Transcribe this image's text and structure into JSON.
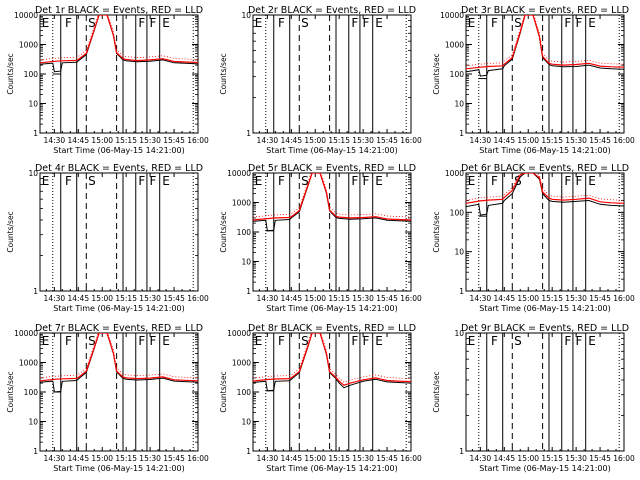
{
  "chart_data": {
    "type": "line",
    "yscale": "log",
    "grid": false,
    "panels": [
      {
        "title": "Det 1r BLACK = Events, RED = LLD",
        "ylabel": "Counts/sec",
        "xlabel": "Start Time (06-May-15 14:21:00)",
        "xlim": [
          "14:21",
          "16:00"
        ],
        "ylim": [
          1,
          10000
        ],
        "x_ticks": [
          "14:30",
          "14:45",
          "15:00",
          "15:15",
          "15:30",
          "15:45",
          "16:00"
        ],
        "y_ticks": [
          "1",
          "10",
          "100",
          "1000",
          "10000"
        ],
        "has_data": true,
        "dip_level": 100,
        "region_labels": [
          "E",
          "F",
          "S",
          "F",
          "F",
          "E"
        ],
        "series": [
          {
            "color": "#000000",
            "x": [
              "14:21",
              "14:29",
              "14:30",
              "14:34",
              "14:35",
              "14:44",
              "14:45",
              "14:50",
              "14:55",
              "14:58",
              "15:03",
              "15:07",
              "15:09",
              "15:13",
              "15:15",
              "15:22",
              "15:30",
              "15:38",
              "15:45",
              "15:52",
              "16:00"
            ],
            "y": [
              215,
              235,
              120,
              125,
              240,
              250,
              280,
              450,
              3000,
              10000,
              10000,
              2000,
              500,
              300,
              280,
              260,
              270,
              300,
              240,
              230,
              220
            ]
          },
          {
            "color": "#ff0000",
            "x": [
              "14:21",
              "14:30",
              "14:35",
              "14:44",
              "14:45",
              "14:50",
              "14:55",
              "14:58",
              "15:03",
              "15:07",
              "15:09",
              "15:13",
              "15:15",
              "15:22",
              "15:30",
              "15:38",
              "15:45",
              "15:52",
              "16:00"
            ],
            "y": [
              240,
              270,
              280,
              290,
              310,
              500,
              3200,
              10000,
              10000,
              2100,
              530,
              330,
              310,
              285,
              300,
              330,
              265,
              255,
              245
            ]
          }
        ]
      },
      {
        "title": "Det 2r BLACK = Events, RED = LLD",
        "ylabel": "Counts/sec",
        "xlabel": "Start Time (06-May-15 14:21:00)",
        "xlim": [
          "14:21",
          "16:00"
        ],
        "ylim": [
          1,
          10
        ],
        "x_ticks": [
          "14:30",
          "14:45",
          "15:00",
          "15:15",
          "15:30",
          "15:45",
          "16:00"
        ],
        "y_ticks": [
          "1",
          "10"
        ],
        "has_data": false,
        "region_labels": [
          "E",
          "F",
          "S",
          "F",
          "F",
          "E"
        ],
        "series": []
      },
      {
        "title": "Det 3r BLACK = Events, RED = LLD",
        "ylabel": "Counts/sec",
        "xlabel": "Start Time (06-May-15 14:21:00)",
        "xlim": [
          "14:21",
          "16:00"
        ],
        "ylim": [
          1,
          10000
        ],
        "x_ticks": [
          "14:30",
          "14:45",
          "15:00",
          "15:15",
          "15:30",
          "15:45",
          "16:00"
        ],
        "y_ticks": [
          "1",
          "10",
          "100",
          "1000",
          "10000"
        ],
        "has_data": true,
        "dip_level": 70,
        "region_labels": [
          "E",
          "F",
          "S",
          "F",
          "F",
          "E"
        ],
        "series": [
          {
            "color": "#000000",
            "x": [
              "14:21",
              "14:29",
              "14:30",
              "14:34",
              "14:35",
              "14:44",
              "14:45",
              "14:50",
              "14:55",
              "14:58",
              "15:03",
              "15:07",
              "15:09",
              "15:13",
              "15:15",
              "15:22",
              "15:30",
              "15:38",
              "15:45",
              "15:52",
              "16:00"
            ],
            "y": [
              120,
              140,
              85,
              90,
              130,
              150,
              190,
              320,
              2500,
              10000,
              10000,
              1800,
              360,
              210,
              190,
              175,
              180,
              200,
              160,
              150,
              145
            ]
          },
          {
            "color": "#ff0000",
            "x": [
              "14:21",
              "14:30",
              "14:35",
              "14:44",
              "14:45",
              "14:50",
              "14:55",
              "14:58",
              "15:03",
              "15:07",
              "15:09",
              "15:13",
              "15:15",
              "15:22",
              "15:30",
              "15:38",
              "15:45",
              "15:52",
              "16:00"
            ],
            "y": [
              150,
              170,
              180,
              190,
              215,
              360,
              2700,
              10000,
              10000,
              1900,
              390,
              230,
              215,
              200,
              210,
              230,
              185,
              175,
              170
            ]
          }
        ]
      },
      {
        "title": "Det 4r BLACK = Events, RED = LLD",
        "ylabel": "Counts/sec",
        "xlabel": "Start Time (06-May-15 14:21:00)",
        "xlim": [
          "14:21",
          "16:00"
        ],
        "ylim": [
          1,
          10
        ],
        "x_ticks": [
          "14:30",
          "14:45",
          "15:00",
          "15:15",
          "15:30",
          "15:45",
          "16:00"
        ],
        "y_ticks": [
          "1",
          "10"
        ],
        "has_data": false,
        "region_labels": [
          "E",
          "F",
          "S",
          "F",
          "F",
          "E"
        ],
        "series": []
      },
      {
        "title": "Det 5r BLACK = Events, RED = LLD",
        "ylabel": "Counts/sec",
        "xlabel": "Start Time (06-May-15 14:21:00)",
        "xlim": [
          "14:21",
          "16:00"
        ],
        "ylim": [
          1,
          10000
        ],
        "x_ticks": [
          "14:30",
          "14:45",
          "15:00",
          "15:15",
          "15:30",
          "15:45",
          "16:00"
        ],
        "y_ticks": [
          "1",
          "10",
          "100",
          "1000",
          "10000"
        ],
        "has_data": true,
        "dip_level": 110,
        "region_labels": [
          "E",
          "F",
          "S",
          "F",
          "F",
          "E"
        ],
        "series": [
          {
            "color": "#000000",
            "x": [
              "14:21",
              "14:29",
              "14:30",
              "14:34",
              "14:35",
              "14:44",
              "14:45",
              "14:50",
              "14:55",
              "14:58",
              "15:03",
              "15:07",
              "15:09",
              "15:13",
              "15:15",
              "15:22",
              "15:30",
              "15:38",
              "15:45",
              "15:52",
              "16:00"
            ],
            "y": [
              230,
              250,
              110,
              115,
              250,
              265,
              300,
              480,
              3100,
              10000,
              10000,
              2100,
              520,
              310,
              290,
              270,
              280,
              300,
              250,
              240,
              230
            ]
          },
          {
            "color": "#ff0000",
            "x": [
              "14:21",
              "14:30",
              "14:35",
              "14:44",
              "14:45",
              "14:50",
              "14:55",
              "14:58",
              "15:03",
              "15:07",
              "15:09",
              "15:13",
              "15:15",
              "15:22",
              "15:30",
              "15:38",
              "15:45",
              "15:52",
              "16:00"
            ],
            "y": [
              255,
              285,
              300,
              310,
              330,
              530,
              3300,
              10000,
              10000,
              2200,
              550,
              340,
              320,
              300,
              310,
              330,
              275,
              265,
              255
            ]
          }
        ]
      },
      {
        "title": "Det 6r BLACK = Events, RED = LLD",
        "ylabel": "Counts/sec",
        "xlabel": "Start Time (06-May-15 14:21:00)",
        "xlim": [
          "14:21",
          "16:00"
        ],
        "ylim": [
          1,
          1000
        ],
        "x_ticks": [
          "14:30",
          "14:45",
          "15:00",
          "15:15",
          "15:30",
          "15:45",
          "16:00"
        ],
        "y_ticks": [
          "1",
          "10",
          "100",
          "1000"
        ],
        "has_data": true,
        "dip_level": 80,
        "region_labels": [
          "E",
          "F",
          "S",
          "F",
          "F",
          "E"
        ],
        "series": [
          {
            "color": "#000000",
            "x": [
              "14:21",
              "14:29",
              "14:30",
              "14:34",
              "14:35",
              "14:44",
              "14:45",
              "14:50",
              "14:55",
              "14:58",
              "15:03",
              "15:07",
              "15:09",
              "15:13",
              "15:15",
              "15:22",
              "15:30",
              "15:38",
              "15:45",
              "15:52",
              "16:00"
            ],
            "y": [
              140,
              160,
              85,
              90,
              150,
              170,
              200,
              300,
              800,
              1000,
              1000,
              700,
              300,
              200,
              190,
              180,
              190,
              200,
              160,
              150,
              145
            ]
          },
          {
            "color": "#ff0000",
            "x": [
              "14:21",
              "14:30",
              "14:35",
              "14:44",
              "14:45",
              "14:50",
              "14:55",
              "14:58",
              "15:03",
              "15:07",
              "15:09",
              "15:13",
              "15:15",
              "15:22",
              "15:30",
              "15:38",
              "15:45",
              "15:52",
              "16:00"
            ],
            "y": [
              170,
              195,
              205,
              215,
              240,
              360,
              900,
              1000,
              1000,
              760,
              330,
              230,
              215,
              205,
              215,
              230,
              185,
              175,
              170
            ]
          }
        ]
      },
      {
        "title": "Det 7r BLACK = Events, RED = LLD",
        "ylabel": "Counts/sec",
        "xlabel": "Start Time (06-May-15 14:21:00)",
        "xlim": [
          "14:21",
          "16:00"
        ],
        "ylim": [
          1,
          10000
        ],
        "x_ticks": [
          "14:30",
          "14:45",
          "15:00",
          "15:15",
          "15:30",
          "15:45",
          "16:00"
        ],
        "y_ticks": [
          "1",
          "10",
          "100",
          "1000",
          "10000"
        ],
        "has_data": true,
        "dip_level": 100,
        "region_labels": [
          "E",
          "F",
          "S",
          "F",
          "F",
          "E"
        ],
        "series": [
          {
            "color": "#000000",
            "x": [
              "14:21",
              "14:29",
              "14:30",
              "14:34",
              "14:35",
              "14:44",
              "14:45",
              "14:50",
              "14:55",
              "14:58",
              "15:03",
              "15:07",
              "15:09",
              "15:13",
              "15:15",
              "15:22",
              "15:30",
              "15:38",
              "15:45",
              "15:52",
              "16:00"
            ],
            "y": [
              215,
              235,
              100,
              105,
              230,
              245,
              275,
              460,
              3000,
              10000,
              10000,
              2000,
              480,
              290,
              270,
              255,
              265,
              295,
              235,
              225,
              215
            ]
          },
          {
            "color": "#ff0000",
            "x": [
              "14:21",
              "14:30",
              "14:35",
              "14:44",
              "14:45",
              "14:50",
              "14:55",
              "14:58",
              "15:03",
              "15:07",
              "15:09",
              "15:13",
              "15:15",
              "15:22",
              "15:30",
              "15:38",
              "15:45",
              "15:52",
              "16:00"
            ],
            "y": [
              240,
              270,
              280,
              290,
              310,
              510,
              3200,
              10000,
              10000,
              2100,
              510,
              320,
              300,
              285,
              295,
              325,
              260,
              250,
              240
            ]
          }
        ]
      },
      {
        "title": "Det 8r BLACK = Events, RED = LLD",
        "ylabel": "Counts/sec",
        "xlabel": "Start Time (06-May-15 14:21:00)",
        "xlim": [
          "14:21",
          "16:00"
        ],
        "ylim": [
          1,
          10000
        ],
        "x_ticks": [
          "14:30",
          "14:45",
          "15:00",
          "15:15",
          "15:30",
          "15:45",
          "16:00"
        ],
        "y_ticks": [
          "1",
          "10",
          "100",
          "1000",
          "10000"
        ],
        "has_data": true,
        "dip_level": 110,
        "region_labels": [
          "E",
          "F",
          "S",
          "F",
          "F",
          "E"
        ],
        "series": [
          {
            "color": "#000000",
            "x": [
              "14:21",
              "14:29",
              "14:30",
              "14:34",
              "14:35",
              "14:44",
              "14:45",
              "14:50",
              "14:55",
              "14:58",
              "15:03",
              "15:07",
              "15:09",
              "15:13",
              "15:15",
              "15:18",
              "15:22",
              "15:30",
              "15:38",
              "15:45",
              "15:52",
              "16:00"
            ],
            "y": [
              210,
              230,
              110,
              115,
              230,
              240,
              270,
              450,
              2900,
              10000,
              10000,
              1900,
              460,
              280,
              200,
              140,
              170,
              230,
              270,
              220,
              210,
              200
            ]
          },
          {
            "color": "#ff0000",
            "x": [
              "14:21",
              "14:30",
              "14:35",
              "14:44",
              "14:45",
              "14:50",
              "14:55",
              "14:58",
              "15:03",
              "15:07",
              "15:09",
              "15:13",
              "15:15",
              "15:18",
              "15:22",
              "15:30",
              "15:38",
              "15:45",
              "15:52",
              "16:00"
            ],
            "y": [
              235,
              265,
              275,
              285,
              300,
              490,
              3100,
              10000,
              10000,
              2000,
              490,
              310,
              230,
              170,
              200,
              260,
              300,
              245,
              235,
              225
            ]
          }
        ]
      },
      {
        "title": "Det 9r BLACK = Events, RED = LLD",
        "ylabel": "Counts/sec",
        "xlabel": "Start Time (06-May-15 14:21:00)",
        "xlim": [
          "14:21",
          "16:00"
        ],
        "ylim": [
          1,
          10
        ],
        "x_ticks": [
          "14:30",
          "14:45",
          "15:00",
          "15:15",
          "15:30",
          "15:45",
          "16:00"
        ],
        "y_ticks": [
          "1",
          "10"
        ],
        "has_data": false,
        "region_labels": [
          "E",
          "F",
          "S",
          "F",
          "F",
          "E"
        ],
        "series": []
      }
    ]
  }
}
